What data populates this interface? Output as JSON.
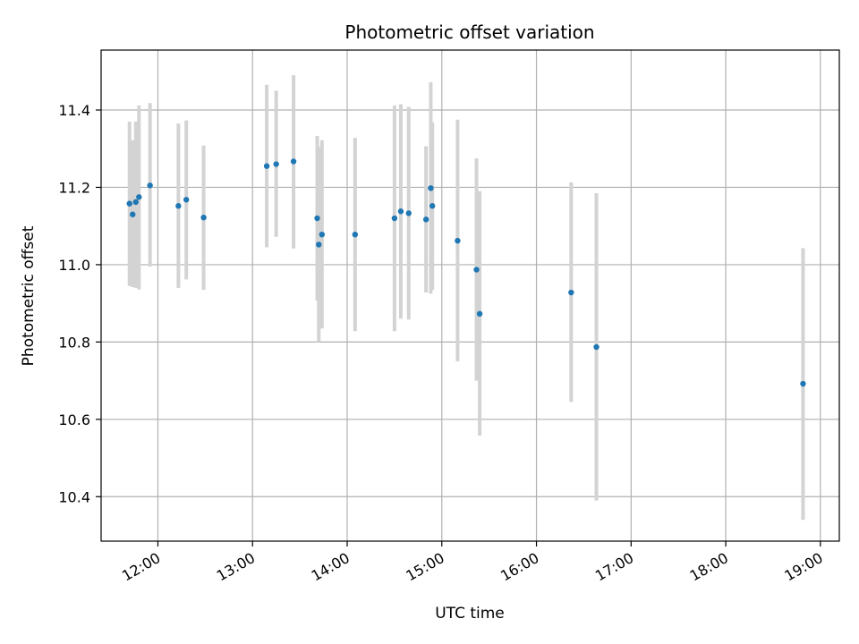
{
  "chart_data": {
    "type": "scatter",
    "title": "Photometric offset variation",
    "xlabel": "UTC time",
    "ylabel": "Photometric offset",
    "x_unit": "UTC hours",
    "xlim": [
      "11:24",
      "19:12"
    ],
    "ylim": [
      10.285,
      11.555
    ],
    "x_ticks": [
      "12:00",
      "13:00",
      "14:00",
      "15:00",
      "16:00",
      "17:00",
      "18:00",
      "19:00"
    ],
    "y_ticks": [
      "10.4",
      "10.6",
      "10.8",
      "11.0",
      "11.2",
      "11.4"
    ],
    "grid": true,
    "marker_color": "#1f77b4",
    "errorbar_color": "#d3d3d3",
    "points": [
      {
        "x": "11:42",
        "y": 11.158,
        "err_low": 10.945,
        "err_high": 11.37
      },
      {
        "x": "11:44",
        "y": 11.13,
        "err_low": 10.942,
        "err_high": 11.322
      },
      {
        "x": "11:46",
        "y": 11.162,
        "err_low": 10.94,
        "err_high": 11.37
      },
      {
        "x": "11:48",
        "y": 11.175,
        "err_low": 10.936,
        "err_high": 11.412
      },
      {
        "x": "11:55",
        "y": 11.205,
        "err_low": 10.995,
        "err_high": 11.418
      },
      {
        "x": "12:13",
        "y": 11.152,
        "err_low": 10.94,
        "err_high": 11.365
      },
      {
        "x": "12:18",
        "y": 11.168,
        "err_low": 10.962,
        "err_high": 11.373
      },
      {
        "x": "12:29",
        "y": 11.122,
        "err_low": 10.935,
        "err_high": 11.308
      },
      {
        "x": "13:09",
        "y": 11.255,
        "err_low": 11.045,
        "err_high": 11.465
      },
      {
        "x": "13:15",
        "y": 11.26,
        "err_low": 11.072,
        "err_high": 11.45
      },
      {
        "x": "13:26",
        "y": 11.267,
        "err_low": 11.042,
        "err_high": 11.49
      },
      {
        "x": "13:41",
        "y": 11.12,
        "err_low": 10.907,
        "err_high": 11.333
      },
      {
        "x": "13:42",
        "y": 11.052,
        "err_low": 10.8,
        "err_high": 11.305
      },
      {
        "x": "13:44",
        "y": 11.078,
        "err_low": 10.835,
        "err_high": 11.322
      },
      {
        "x": "14:05",
        "y": 11.078,
        "err_low": 10.828,
        "err_high": 11.328
      },
      {
        "x": "14:30",
        "y": 11.12,
        "err_low": 10.828,
        "err_high": 11.412
      },
      {
        "x": "14:34",
        "y": 11.138,
        "err_low": 10.86,
        "err_high": 11.415
      },
      {
        "x": "14:39",
        "y": 11.133,
        "err_low": 10.858,
        "err_high": 11.408
      },
      {
        "x": "14:50",
        "y": 11.117,
        "err_low": 10.928,
        "err_high": 11.306
      },
      {
        "x": "14:53",
        "y": 11.198,
        "err_low": 10.925,
        "err_high": 11.472
      },
      {
        "x": "14:54",
        "y": 11.152,
        "err_low": 10.935,
        "err_high": 11.368
      },
      {
        "x": "15:10",
        "y": 11.062,
        "err_low": 10.75,
        "err_high": 11.375
      },
      {
        "x": "15:22",
        "y": 10.987,
        "err_low": 10.7,
        "err_high": 11.275
      },
      {
        "x": "15:24",
        "y": 10.873,
        "err_low": 10.558,
        "err_high": 11.19
      },
      {
        "x": "16:22",
        "y": 10.928,
        "err_low": 10.645,
        "err_high": 11.213
      },
      {
        "x": "16:38",
        "y": 10.787,
        "err_low": 10.39,
        "err_high": 11.185
      },
      {
        "x": "18:49",
        "y": 10.692,
        "err_low": 10.34,
        "err_high": 11.043
      }
    ]
  }
}
